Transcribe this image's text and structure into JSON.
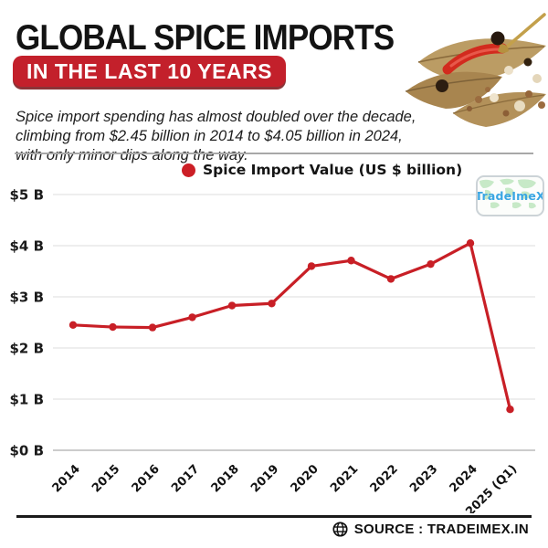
{
  "header": {
    "title": "GLOBAL SPICE IMPORTS",
    "badge_label": "IN THE LAST 10 YEARS",
    "subtitle_line1": "Spice import spending has almost doubled over the decade,",
    "subtitle_line2": "climbing from $2.45 billion in 2014 to $4.05 billion in 2024,",
    "subtitle_line3": "with only minor dips along the way."
  },
  "legend": {
    "label": "Spice Import Value (US $ billion)",
    "dot_color": "#cc1f26"
  },
  "watermark": {
    "text": "TradeImeX",
    "text_color": "#3aa6e3"
  },
  "chart_data": {
    "type": "line",
    "title": "",
    "xlabel": "",
    "ylabel": "US $ billion",
    "categories": [
      "2014",
      "2015",
      "2016",
      "2017",
      "2018",
      "2019",
      "2020",
      "2021",
      "2022",
      "2023",
      "2024",
      "2025 (Q1)"
    ],
    "series": [
      {
        "name": "Spice Import Value (US $ billion)",
        "color": "#c81f26",
        "values": [
          2.45,
          2.41,
          2.4,
          2.6,
          2.83,
          2.87,
          3.6,
          3.71,
          3.35,
          3.64,
          4.05,
          0.8
        ]
      }
    ],
    "y_ticks": [
      "$0 B",
      "$1 B",
      "$2 B",
      "$3 B",
      "$4 B",
      "$5 B"
    ],
    "ylim": [
      0,
      5
    ],
    "grid": true,
    "legend_position": "top"
  },
  "footer": {
    "source": "SOURCE : TRADEIMEX.IN"
  },
  "colors": {
    "accent_red": "#c3202b",
    "grid_gray": "#e8e8e8"
  }
}
